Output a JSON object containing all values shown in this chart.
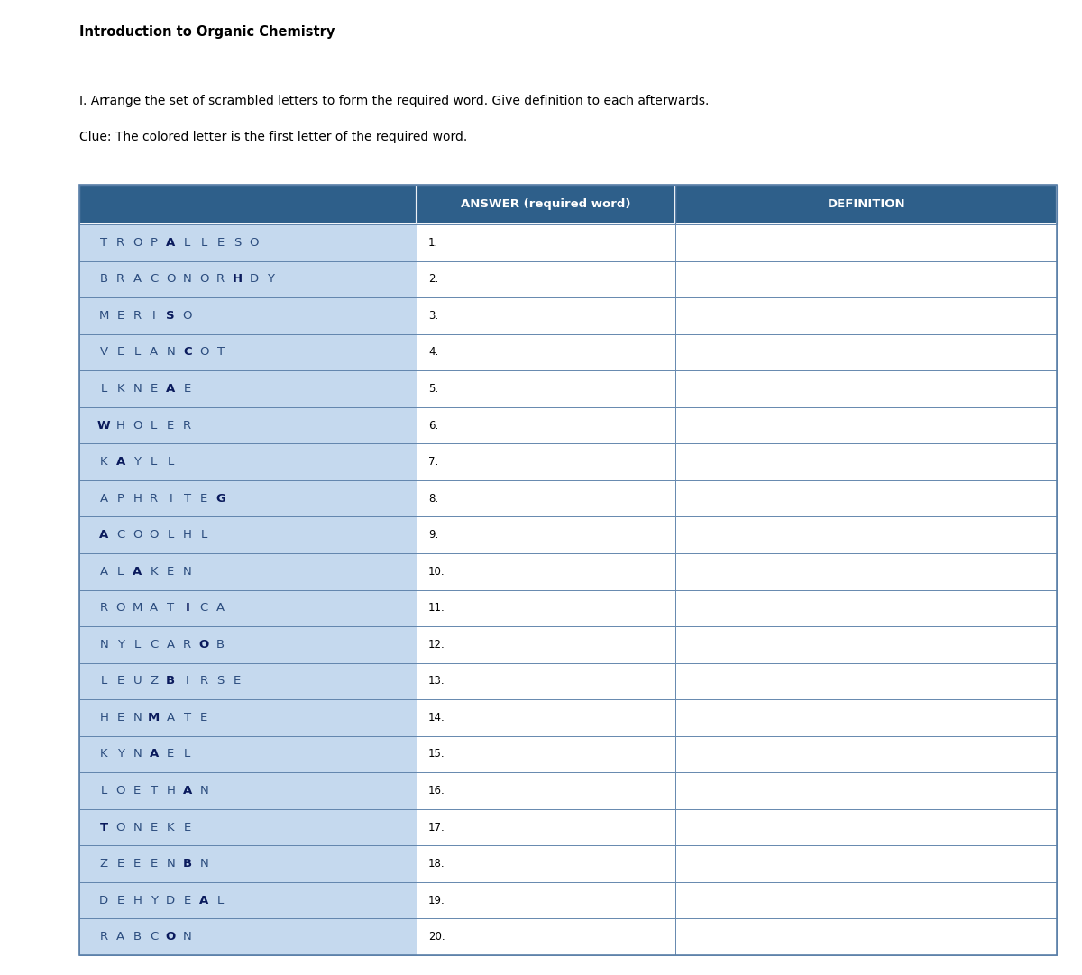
{
  "title": "Introduction to Organic Chemistry",
  "instruction": "I. Arrange the set of scrambled letters to form the required word. Give definition to each afterwards.",
  "clue": "Clue: The colored letter is the first letter of the required word.",
  "header_col2": "ANSWER (required word)",
  "header_col3": "DEFINITION",
  "header_bg": "#2E5F8A",
  "header_text_color": "#FFFFFF",
  "row_bg": "#C5D9EE",
  "border_color": "#5A7FA8",
  "text_color_normal": "#2B4C7E",
  "text_color_highlight": "#0A1A5C",
  "rows": [
    {
      "scrambled": "TROPALLESO",
      "highlight_indices": [
        4
      ],
      "number": "1."
    },
    {
      "scrambled": "BRACONORHDY",
      "highlight_indices": [
        8
      ],
      "number": "2."
    },
    {
      "scrambled": "MERISO",
      "highlight_indices": [
        4
      ],
      "number": "3."
    },
    {
      "scrambled": "VELANCOT",
      "highlight_indices": [
        5
      ],
      "number": "4."
    },
    {
      "scrambled": "LKNEAE",
      "highlight_indices": [
        4
      ],
      "number": "5."
    },
    {
      "scrambled": "WHOLER",
      "highlight_indices": [
        0
      ],
      "number": "6."
    },
    {
      "scrambled": "KAYLL",
      "highlight_indices": [
        1
      ],
      "number": "7."
    },
    {
      "scrambled": "APHRITEG",
      "highlight_indices": [
        7
      ],
      "number": "8."
    },
    {
      "scrambled": "ACOOLHL",
      "highlight_indices": [
        0
      ],
      "number": "9."
    },
    {
      "scrambled": "ALAKEN",
      "highlight_indices": [
        2
      ],
      "number": "10."
    },
    {
      "scrambled": "ROMATICA",
      "highlight_indices": [
        5
      ],
      "number": "11."
    },
    {
      "scrambled": "NYLCAROB",
      "highlight_indices": [
        6
      ],
      "number": "12."
    },
    {
      "scrambled": "LEUZBIRSE",
      "highlight_indices": [
        4
      ],
      "number": "13."
    },
    {
      "scrambled": "HENMATE",
      "highlight_indices": [
        3
      ],
      "number": "14."
    },
    {
      "scrambled": "KYNAEL",
      "highlight_indices": [
        3
      ],
      "number": "15."
    },
    {
      "scrambled": "LOETHAN",
      "highlight_indices": [
        5
      ],
      "number": "16."
    },
    {
      "scrambled": "TONEKE",
      "highlight_indices": [
        0
      ],
      "number": "17."
    },
    {
      "scrambled": "ZEEENBN",
      "highlight_indices": [
        5
      ],
      "number": "18."
    },
    {
      "scrambled": "DEHYDEAL",
      "highlight_indices": [
        6
      ],
      "number": "19."
    },
    {
      "scrambled": "RABCON",
      "highlight_indices": [
        4
      ],
      "number": "20."
    }
  ],
  "fig_width": 12.0,
  "fig_height": 10.82
}
